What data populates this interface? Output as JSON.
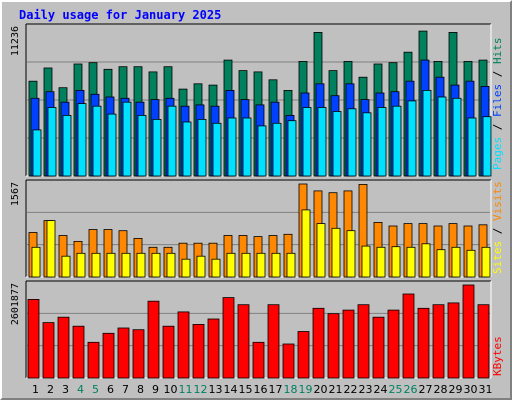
{
  "chart_data": [
    {
      "type": "bar",
      "title": "Daily usage for January 2025",
      "categories": [
        "1",
        "2",
        "3",
        "4",
        "5",
        "6",
        "7",
        "8",
        "9",
        "10",
        "11",
        "12",
        "13",
        "14",
        "15",
        "16",
        "17",
        "18",
        "19",
        "20",
        "21",
        "22",
        "23",
        "24",
        "25",
        "26",
        "27",
        "28",
        "29",
        "30",
        "31"
      ],
      "weekend_days": [
        "4",
        "5",
        "11",
        "12",
        "18",
        "19",
        "25",
        "26"
      ],
      "ymax_label": "11236",
      "ylim": [
        0,
        11236
      ],
      "legend": [
        "Pages",
        "Files",
        "Hits"
      ],
      "series": [
        {
          "name": "Hits",
          "color": "#00805c",
          "values": [
            7200,
            8200,
            6700,
            8500,
            8600,
            8100,
            8300,
            8300,
            7900,
            8300,
            6600,
            7000,
            6900,
            8800,
            8000,
            7900,
            7300,
            6500,
            8700,
            10900,
            8000,
            8700,
            7500,
            8500,
            8600,
            9400,
            11000,
            8700,
            10900,
            8700,
            8800
          ]
        },
        {
          "name": "Files",
          "color": "#0040ff",
          "values": [
            5900,
            6400,
            5600,
            6500,
            6200,
            6000,
            5900,
            5600,
            5800,
            5900,
            5300,
            5400,
            5300,
            6500,
            5800,
            5400,
            5600,
            4600,
            6300,
            7000,
            6100,
            7000,
            5800,
            6300,
            6400,
            7200,
            8800,
            7500,
            6900,
            7200,
            6800
          ]
        },
        {
          "name": "Pages",
          "color": "#00e0ff",
          "values": [
            3500,
            5200,
            4600,
            5500,
            5300,
            4700,
            5600,
            4600,
            4300,
            5300,
            4100,
            4300,
            4000,
            4400,
            4400,
            3800,
            4000,
            4200,
            5200,
            5200,
            4900,
            5100,
            4800,
            5200,
            5300,
            5700,
            6500,
            6000,
            5900,
            4400,
            4500
          ]
        }
      ]
    },
    {
      "type": "bar",
      "categories": [
        "1",
        "2",
        "3",
        "4",
        "5",
        "6",
        "7",
        "8",
        "9",
        "10",
        "11",
        "12",
        "13",
        "14",
        "15",
        "16",
        "17",
        "18",
        "19",
        "20",
        "21",
        "22",
        "23",
        "24",
        "25",
        "26",
        "27",
        "28",
        "29",
        "30",
        "31"
      ],
      "ymax_label": "1567",
      "ylim": [
        0,
        1567
      ],
      "legend": [
        "Sites",
        "Visits"
      ],
      "series": [
        {
          "name": "Visits",
          "color": "#ff8800",
          "values": [
            750,
            950,
            700,
            600,
            800,
            800,
            780,
            650,
            500,
            500,
            570,
            570,
            570,
            700,
            700,
            680,
            700,
            720,
            1567,
            1450,
            1420,
            1450,
            1560,
            920,
            860,
            900,
            900,
            860,
            900,
            860,
            880
          ]
        },
        {
          "name": "Sites",
          "color": "#ffff00",
          "values": [
            500,
            950,
            350,
            400,
            400,
            400,
            400,
            400,
            400,
            400,
            300,
            350,
            300,
            400,
            400,
            400,
            400,
            400,
            1130,
            900,
            820,
            780,
            520,
            500,
            510,
            500,
            560,
            460,
            500,
            450,
            500
          ]
        }
      ]
    },
    {
      "type": "bar",
      "categories": [
        "1",
        "2",
        "3",
        "4",
        "5",
        "6",
        "7",
        "8",
        "9",
        "10",
        "11",
        "12",
        "13",
        "14",
        "15",
        "16",
        "17",
        "18",
        "19",
        "20",
        "21",
        "22",
        "23",
        "24",
        "25",
        "26",
        "27",
        "28",
        "29",
        "30",
        "31"
      ],
      "ymax_label": "2601877",
      "ylim": [
        0,
        2601877
      ],
      "legend": [
        "KBytes"
      ],
      "series": [
        {
          "name": "KBytes",
          "color": "#ff0000",
          "values": [
            2200000,
            1550000,
            1700000,
            1450000,
            1000000,
            1250000,
            1400000,
            1350000,
            2150000,
            1450000,
            1850000,
            1500000,
            1650000,
            2250000,
            2050000,
            1000000,
            2050000,
            950000,
            1300000,
            1950000,
            1800000,
            1900000,
            2050000,
            1700000,
            1900000,
            2350000,
            1950000,
            2050000,
            2100000,
            2601877,
            2050000
          ]
        }
      ]
    }
  ]
}
